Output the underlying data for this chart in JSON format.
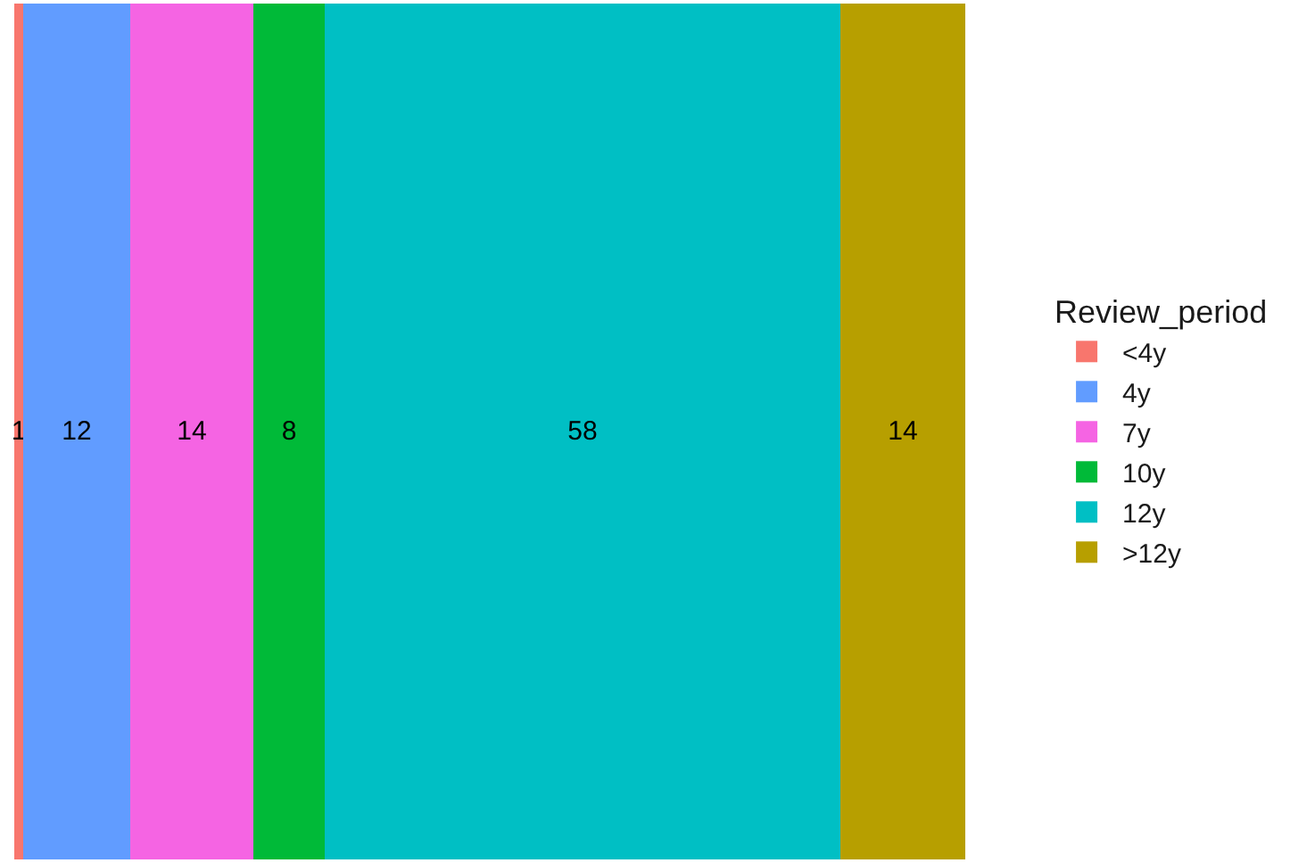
{
  "chart_data": {
    "type": "bar",
    "orientation": "horizontal",
    "stacked": true,
    "categories": [
      null
    ],
    "legend_title": "Review_period",
    "legend": "right",
    "data_labels": true,
    "tick_labels": false,
    "series": [
      {
        "name": "<4y",
        "color": "#f8766d",
        "values": [
          1
        ]
      },
      {
        "name": "4y",
        "color": "#619cff",
        "values": [
          12
        ]
      },
      {
        "name": "7y",
        "color": "#f564e3",
        "values": [
          14
        ]
      },
      {
        "name": "10y",
        "color": "#00ba38",
        "values": [
          8
        ]
      },
      {
        "name": "12y",
        "color": "#00bfc4",
        "values": [
          58
        ]
      },
      {
        "name": ">12y",
        "color": "#b79f00",
        "values": [
          14
        ]
      }
    ]
  }
}
